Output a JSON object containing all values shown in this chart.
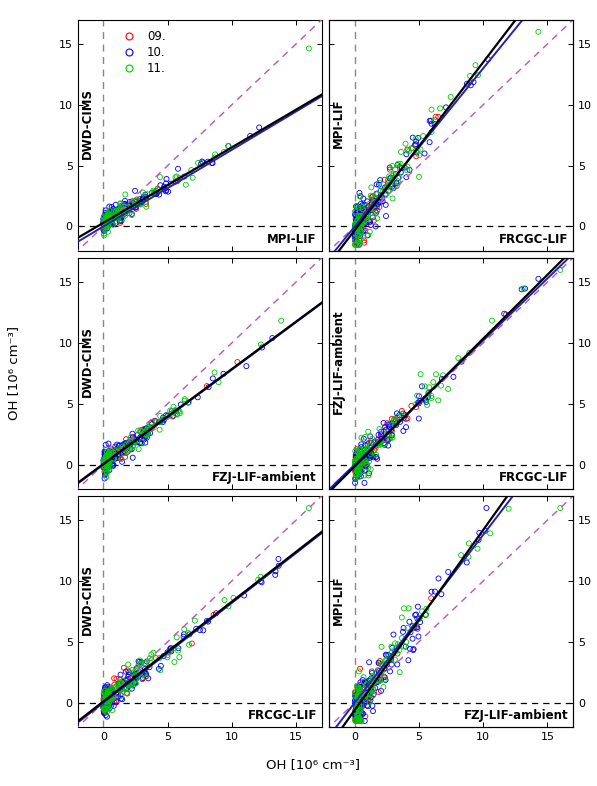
{
  "panels": [
    {
      "ylabel_instrument": "DWD-CIMS",
      "xlabel_instrument": "MPI-LIF",
      "slope_black": 0.62,
      "intercept_black": 0.3,
      "slope_blue": 0.63,
      "has_legend": true,
      "spread": 0.55
    },
    {
      "ylabel_instrument": "MPI-LIF",
      "xlabel_instrument": "FRCGC-LIF",
      "slope_black": 1.38,
      "intercept_black": -0.3,
      "slope_blue": 1.3,
      "has_legend": false,
      "spread": 1.5
    },
    {
      "ylabel_instrument": "DWD-CIMS",
      "xlabel_instrument": "FZJ-LIF-ambient",
      "slope_black": 0.78,
      "intercept_black": 0.05,
      "slope_blue": 0.78,
      "has_legend": false,
      "spread": 0.75
    },
    {
      "ylabel_instrument": "FZJ-LIF-ambient",
      "xlabel_instrument": "FRCGC-LIF",
      "slope_black": 1.05,
      "intercept_black": -0.15,
      "slope_blue": 1.02,
      "has_legend": false,
      "spread": 1.2
    },
    {
      "ylabel_instrument": "DWD-CIMS",
      "xlabel_instrument": "FRCGC-LIF",
      "slope_black": 0.82,
      "intercept_black": 0.1,
      "slope_blue": 0.82,
      "has_legend": false,
      "spread": 1.0
    },
    {
      "ylabel_instrument": "MPI-LIF",
      "xlabel_instrument": "FZJ-LIF-ambient",
      "slope_black": 1.48,
      "intercept_black": -0.6,
      "slope_blue": 1.38,
      "has_legend": false,
      "spread": 1.6
    }
  ],
  "xlim": [
    -2,
    17
  ],
  "ylim": [
    -2,
    17
  ],
  "tick_values": [
    0,
    5,
    10,
    15
  ],
  "color_red": "#FF0000",
  "color_blue_scatter": "#0000FF",
  "color_green": "#00CC00",
  "color_line_black": "#000000",
  "color_line_blue": "#2222BB",
  "color_line_unity": "#BB55BB",
  "color_vline": "#888888",
  "legend_labels": [
    "09.",
    "10.",
    "11."
  ],
  "axis_label": "OH [10⁶ cm⁻³]",
  "background": "#FFFFFF",
  "figsize": [
    5.97,
    7.86
  ],
  "dpi": 100
}
